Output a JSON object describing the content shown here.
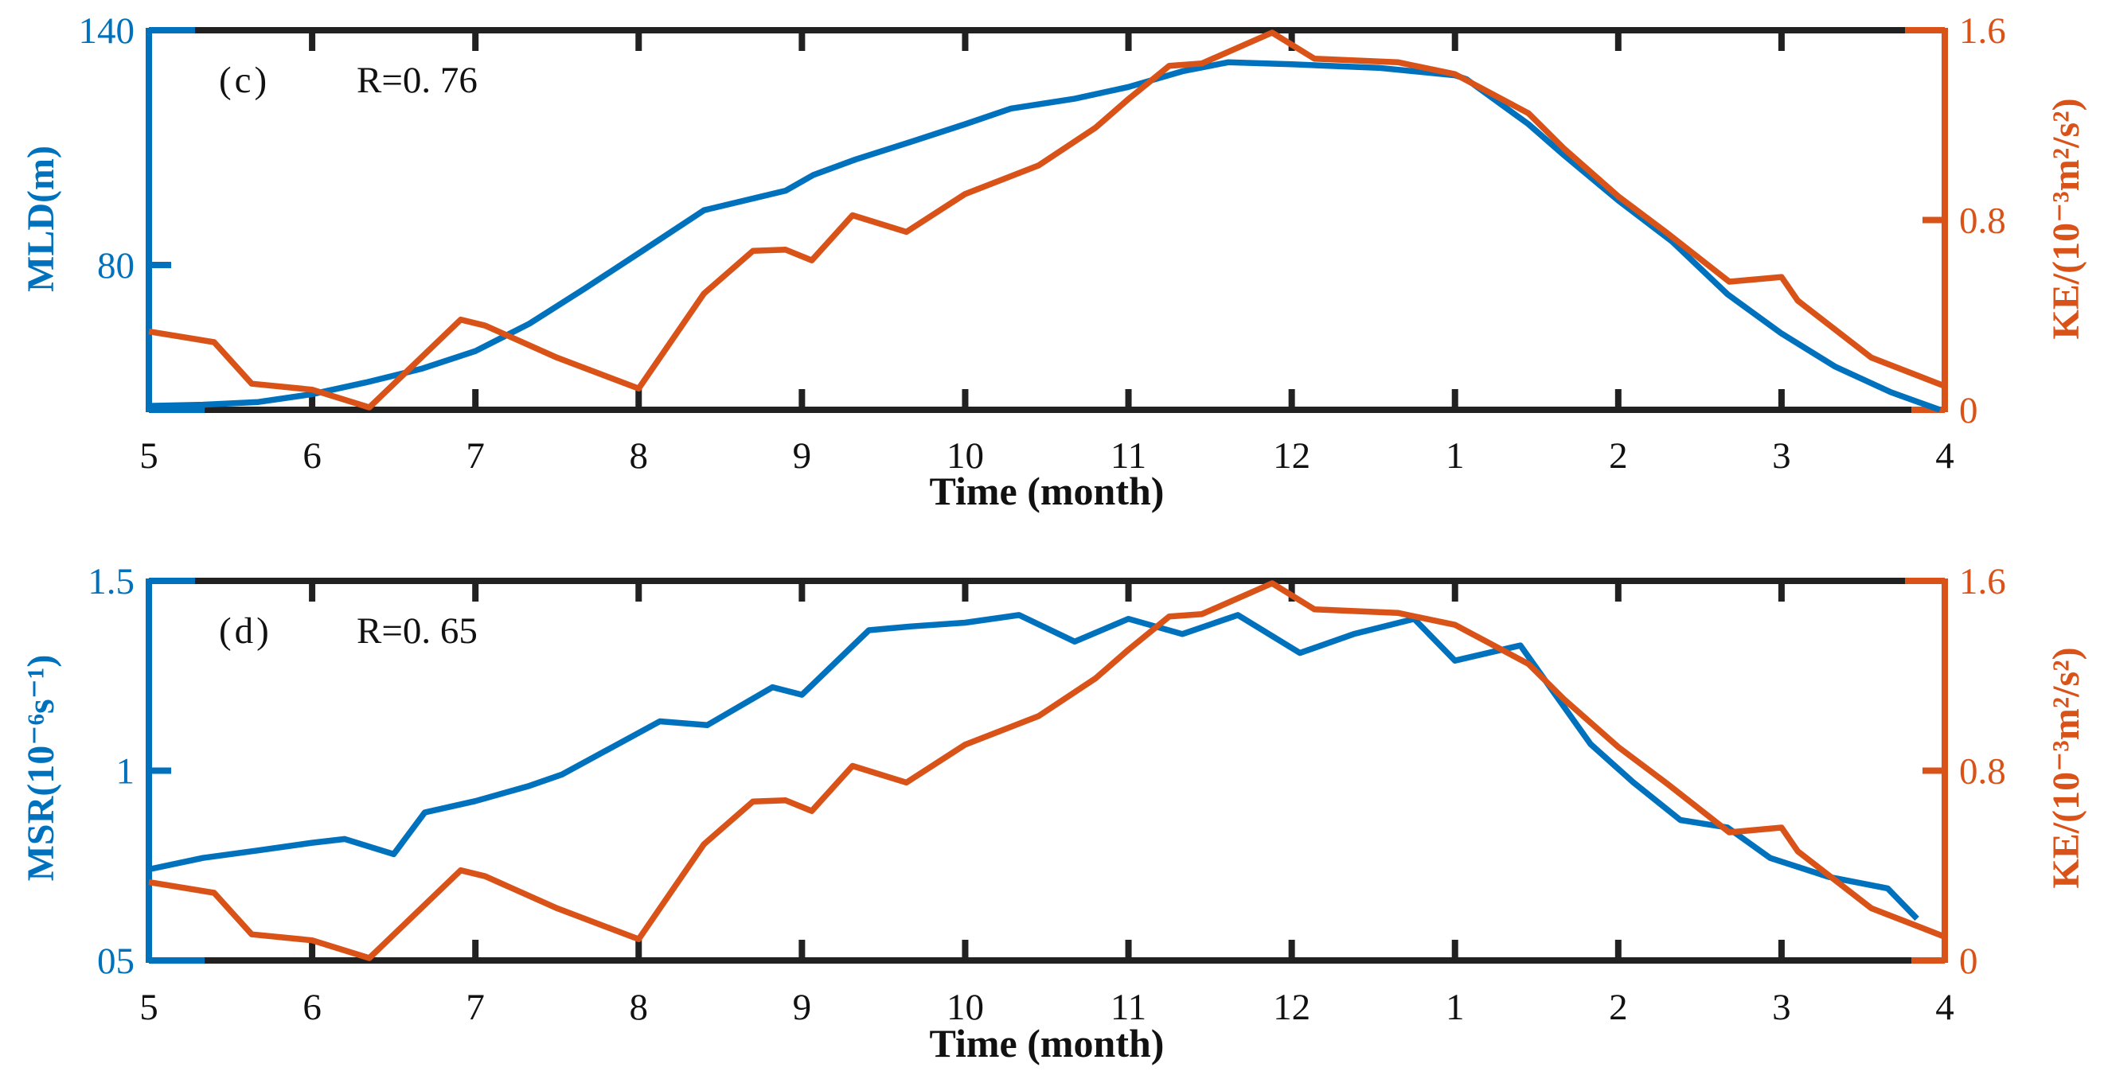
{
  "colors": {
    "blue": "#0072BD",
    "orange": "#D95319",
    "axis_dark": "#212121",
    "tick_text_dark": "#111111",
    "background": "#ffffff"
  },
  "chart_data": [
    {
      "type": "line",
      "panel": "c",
      "annotation": "(c)",
      "r_label": "R=0. 76",
      "R": 0.76,
      "xlabel": "Time (month)",
      "ylabel_left": "MLD(m)",
      "ylabel_right": "KE/(10⁻³m²/s²)",
      "x_unit": "month (5=May ... 12=Dec, then 1-4 of next year)",
      "x_tick_positions": [
        5,
        6,
        7,
        8,
        9,
        10,
        11,
        12,
        13,
        14,
        15,
        16
      ],
      "x_tick_labels": [
        "5",
        "6",
        "7",
        "8",
        "9",
        "10",
        "11",
        "12",
        "1",
        "2",
        "3",
        "4"
      ],
      "xlim": [
        5,
        16
      ],
      "ylim_left": [
        43,
        140
      ],
      "ylim_right": [
        0,
        1.6
      ],
      "yticks_left": [
        {
          "v": 140,
          "label": "140"
        },
        {
          "v": 80,
          "label": "80"
        }
      ],
      "yticks_right": [
        {
          "v": 1.6,
          "label": "1.6"
        },
        {
          "v": 0.8,
          "label": "0.8"
        },
        {
          "v": 0,
          "label": "0"
        }
      ],
      "grid": false,
      "legend": "none",
      "series": [
        {
          "name": "MLD",
          "axis": "left",
          "color": "blue",
          "points": [
            [
              5,
              44
            ],
            [
              5.33,
              44.3
            ],
            [
              5.67,
              45
            ],
            [
              6,
              47
            ],
            [
              6.33,
              50
            ],
            [
              6.67,
              53.5
            ],
            [
              7,
              58
            ],
            [
              7.33,
              65
            ],
            [
              7.67,
              74
            ],
            [
              8,
              83
            ],
            [
              8.4,
              94
            ],
            [
              8.9,
              99
            ],
            [
              9.07,
              103
            ],
            [
              9.33,
              107
            ],
            [
              9.67,
              111.5
            ],
            [
              10,
              116
            ],
            [
              10.28,
              120
            ],
            [
              10.67,
              122.5
            ],
            [
              11,
              125.5
            ],
            [
              11.33,
              129.5
            ],
            [
              11.61,
              131.8
            ],
            [
              12,
              131.3
            ],
            [
              12.53,
              130.4
            ],
            [
              13,
              128.5
            ],
            [
              13.07,
              127.5
            ],
            [
              13.45,
              116
            ],
            [
              13.67,
              108
            ],
            [
              14,
              96.5
            ],
            [
              14.33,
              86
            ],
            [
              14.67,
              72.5
            ],
            [
              15,
              62.5
            ],
            [
              15.33,
              54
            ],
            [
              15.67,
              47.5
            ],
            [
              15.97,
              43
            ]
          ]
        },
        {
          "name": "KE",
          "axis": "right",
          "color": "orange",
          "points": [
            [
              5,
              0.33
            ],
            [
              5.4,
              0.285
            ],
            [
              5.63,
              0.11
            ],
            [
              6,
              0.085
            ],
            [
              6.35,
              0.01
            ],
            [
              6.91,
              0.38
            ],
            [
              7.06,
              0.355
            ],
            [
              7.5,
              0.22
            ],
            [
              8,
              0.09
            ],
            [
              8.4,
              0.49
            ],
            [
              8.7,
              0.67
            ],
            [
              8.9,
              0.675
            ],
            [
              9.06,
              0.63
            ],
            [
              9.31,
              0.82
            ],
            [
              9.64,
              0.75
            ],
            [
              10,
              0.91
            ],
            [
              10.45,
              1.03
            ],
            [
              10.8,
              1.19
            ],
            [
              11,
              1.31
            ],
            [
              11.25,
              1.45
            ],
            [
              11.45,
              1.46
            ],
            [
              11.88,
              1.59
            ],
            [
              12.14,
              1.48
            ],
            [
              12.65,
              1.465
            ],
            [
              13,
              1.415
            ],
            [
              13.45,
              1.25
            ],
            [
              13.67,
              1.1
            ],
            [
              14,
              0.9
            ],
            [
              14.3,
              0.745
            ],
            [
              14.68,
              0.54
            ],
            [
              15,
              0.56
            ],
            [
              15.1,
              0.46
            ],
            [
              15.55,
              0.22
            ],
            [
              16,
              0.1
            ]
          ]
        }
      ]
    },
    {
      "type": "line",
      "panel": "d",
      "annotation": "(d)",
      "r_label": "R=0. 65",
      "R": 0.65,
      "xlabel": "Time (month)",
      "ylabel_left": "MSR(10⁻⁶s⁻¹)",
      "ylabel_right": "KE/(10⁻³m²/s²)",
      "x_unit": "month (5=May ... 12=Dec, then 1-4 of next year)",
      "x_tick_positions": [
        5,
        6,
        7,
        8,
        9,
        10,
        11,
        12,
        13,
        14,
        15,
        16
      ],
      "x_tick_labels": [
        "5",
        "6",
        "7",
        "8",
        "9",
        "10",
        "11",
        "12",
        "1",
        "2",
        "3",
        "4"
      ],
      "xlim": [
        5,
        16
      ],
      "ylim_left": [
        0.5,
        1.5
      ],
      "ylim_right": [
        0,
        1.6
      ],
      "yticks_left": [
        {
          "v": 1.5,
          "label": "1.5"
        },
        {
          "v": 1,
          "label": "1"
        },
        {
          "v": 0.5,
          "label": "05"
        }
      ],
      "yticks_right": [
        {
          "v": 1.6,
          "label": "1.6"
        },
        {
          "v": 0.8,
          "label": "0.8"
        },
        {
          "v": 0,
          "label": "0"
        }
      ],
      "grid": false,
      "legend": "none",
      "series": [
        {
          "name": "MSR",
          "axis": "left",
          "color": "blue",
          "points": [
            [
              5,
              0.74
            ],
            [
              5.33,
              0.77
            ],
            [
              5.67,
              0.79
            ],
            [
              6,
              0.81
            ],
            [
              6.2,
              0.82
            ],
            [
              6.5,
              0.78
            ],
            [
              6.69,
              0.89
            ],
            [
              7,
              0.92
            ],
            [
              7.33,
              0.96
            ],
            [
              7.53,
              0.99
            ],
            [
              8.13,
              1.13
            ],
            [
              8.42,
              1.12
            ],
            [
              8.82,
              1.22
            ],
            [
              9,
              1.2
            ],
            [
              9.41,
              1.37
            ],
            [
              9.67,
              1.38
            ],
            [
              10,
              1.39
            ],
            [
              10.33,
              1.41
            ],
            [
              10.67,
              1.34
            ],
            [
              11,
              1.4
            ],
            [
              11.33,
              1.36
            ],
            [
              11.67,
              1.41
            ],
            [
              12.05,
              1.31
            ],
            [
              12.38,
              1.36
            ],
            [
              12.75,
              1.4
            ],
            [
              13,
              1.29
            ],
            [
              13.4,
              1.33
            ],
            [
              13.83,
              1.07
            ],
            [
              14.09,
              0.97
            ],
            [
              14.38,
              0.87
            ],
            [
              14.67,
              0.85
            ],
            [
              14.93,
              0.77
            ],
            [
              15.29,
              0.72
            ],
            [
              15.65,
              0.69
            ],
            [
              15.83,
              0.61
            ]
          ]
        },
        {
          "name": "KE",
          "axis": "right",
          "color": "orange",
          "points": [
            [
              5,
              0.33
            ],
            [
              5.4,
              0.285
            ],
            [
              5.63,
              0.11
            ],
            [
              6,
              0.085
            ],
            [
              6.35,
              0.01
            ],
            [
              6.91,
              0.38
            ],
            [
              7.06,
              0.355
            ],
            [
              7.5,
              0.22
            ],
            [
              8,
              0.09
            ],
            [
              8.4,
              0.49
            ],
            [
              8.7,
              0.67
            ],
            [
              8.9,
              0.675
            ],
            [
              9.06,
              0.63
            ],
            [
              9.31,
              0.82
            ],
            [
              9.64,
              0.75
            ],
            [
              10,
              0.91
            ],
            [
              10.45,
              1.03
            ],
            [
              10.8,
              1.19
            ],
            [
              11,
              1.31
            ],
            [
              11.25,
              1.45
            ],
            [
              11.45,
              1.46
            ],
            [
              11.88,
              1.59
            ],
            [
              12.14,
              1.48
            ],
            [
              12.65,
              1.465
            ],
            [
              13,
              1.415
            ],
            [
              13.45,
              1.25
            ],
            [
              13.67,
              1.1
            ],
            [
              14,
              0.9
            ],
            [
              14.3,
              0.745
            ],
            [
              14.68,
              0.54
            ],
            [
              15,
              0.56
            ],
            [
              15.1,
              0.46
            ],
            [
              15.55,
              0.22
            ],
            [
              16,
              0.1
            ]
          ]
        }
      ]
    }
  ]
}
